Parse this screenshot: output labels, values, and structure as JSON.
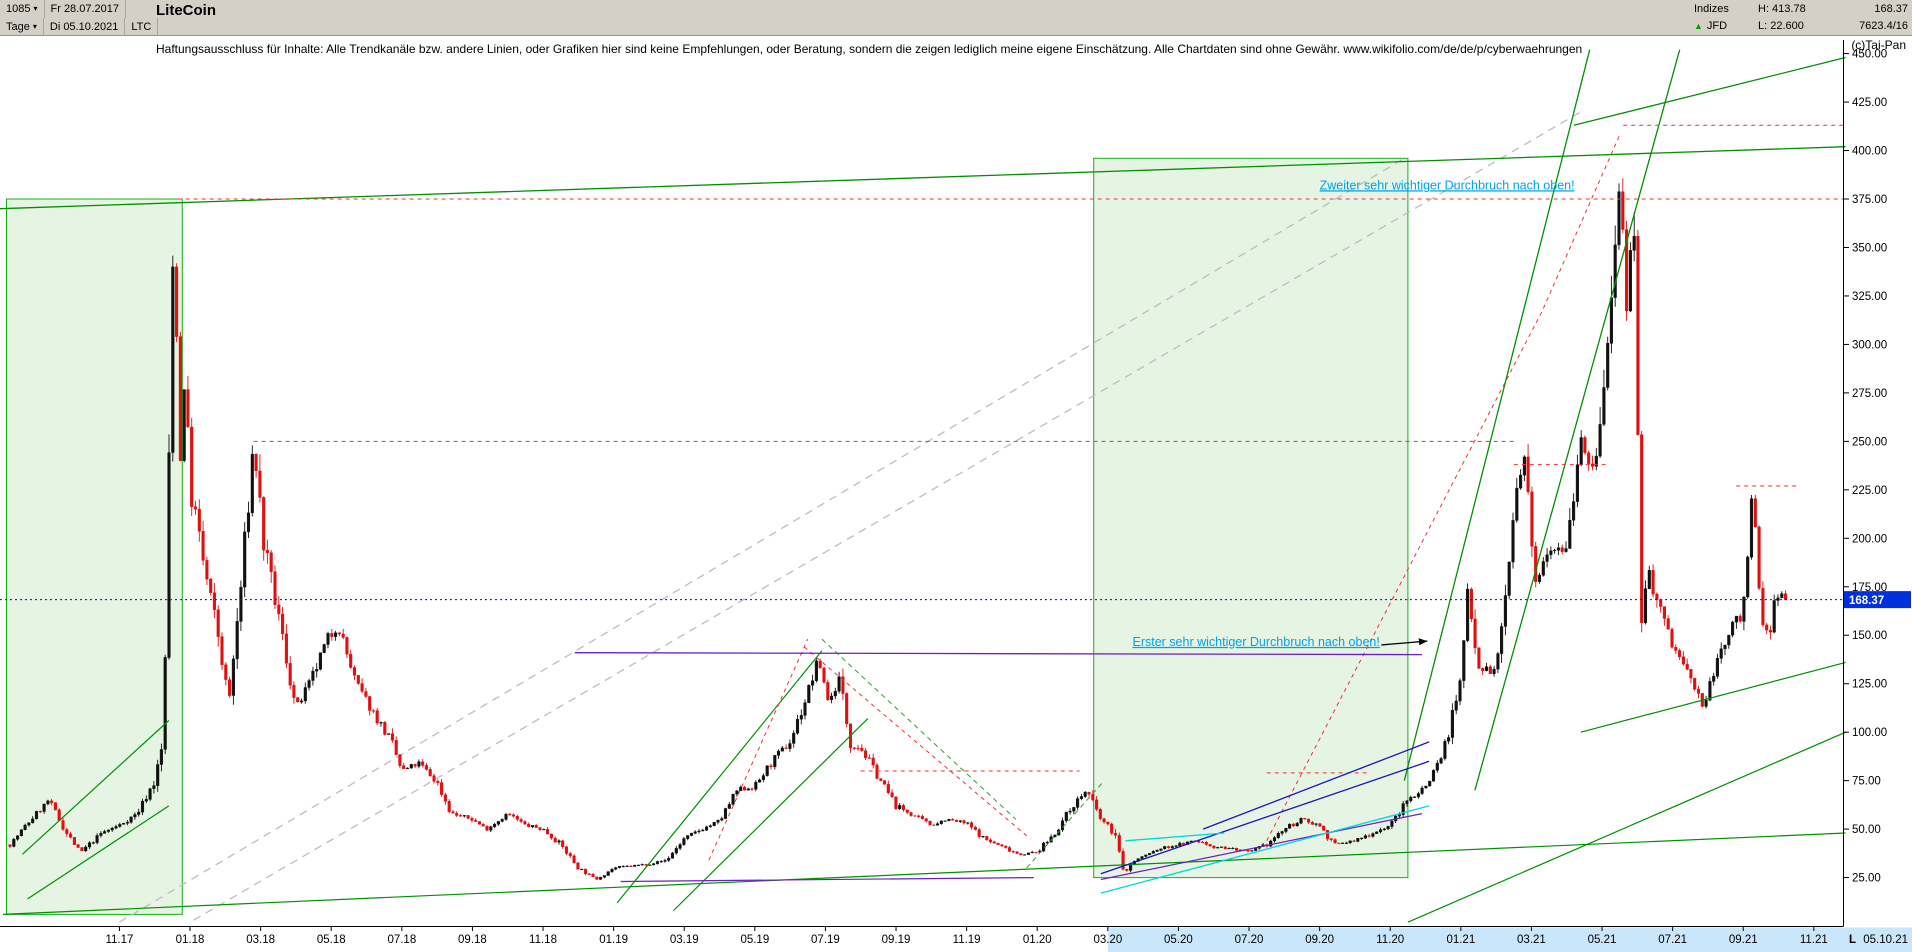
{
  "header": {
    "bars_count": "1085",
    "start_date": "Fr 28.07.2017",
    "period": "Tage",
    "end_date": "Di 05.10.2021",
    "symbol": "LTC",
    "title": "LiteCoin",
    "caret": "▾",
    "indicator": "▲",
    "copyright": "(c)Tai-Pan",
    "right": {
      "indices": "Indizes",
      "high": "H: 413.78",
      "last": "168.37",
      "source": "JFD",
      "low": "L: 22.600",
      "volume": "7623.4/16"
    }
  },
  "disclaimer": "Haftungsausschluss für Inhalte: Alle Trendkanäle bzw. andere Linien, oder Grafiken hier sind keine Empfehlungen, oder Beratung, sondern die zeigen lediglich meine eigene Einschätzung. Alle Chartdaten sind ohne Gewähr.  www.wikifolio.com/de/de/p/cyberwaehrungen",
  "chart_data": {
    "type": "candlestick",
    "title": "LiteCoin",
    "symbol": "LTC",
    "timeframe": "Tage",
    "date_range": [
      "28.07.2017",
      "05.10.2021"
    ],
    "months_total": 50.3,
    "last_price": 168.37,
    "high": 413.78,
    "low": 22.6,
    "ylim": [
      0,
      455
    ],
    "up_color": "#111111",
    "down_color": "#e01010",
    "annotation_color": "#00a2e8",
    "y_ticks": [
      "450.00",
      "425.00",
      "400.00",
      "375.00",
      "350.00",
      "325.00",
      "300.00",
      "275.00",
      "250.00",
      "225.00",
      "200.00",
      "175.00",
      "150.00",
      "125.00",
      "100.00",
      "75.00",
      "50.00",
      "25.00"
    ],
    "x_ticks": [
      {
        "m": 3.1,
        "label": "11.17"
      },
      {
        "m": 5.1,
        "label": "01.18"
      },
      {
        "m": 7.1,
        "label": "03.18"
      },
      {
        "m": 9.1,
        "label": "05.18"
      },
      {
        "m": 11.1,
        "label": "07.18"
      },
      {
        "m": 13.1,
        "label": "09.18"
      },
      {
        "m": 15.1,
        "label": "11.18"
      },
      {
        "m": 17.1,
        "label": "01.19"
      },
      {
        "m": 19.1,
        "label": "03.19"
      },
      {
        "m": 21.1,
        "label": "05.19"
      },
      {
        "m": 23.1,
        "label": "07.19"
      },
      {
        "m": 25.1,
        "label": "09.19"
      },
      {
        "m": 27.1,
        "label": "11.19"
      },
      {
        "m": 29.1,
        "label": "01.20"
      },
      {
        "m": 31.1,
        "label": "03.20"
      },
      {
        "m": 33.1,
        "label": "05.20"
      },
      {
        "m": 35.1,
        "label": "07.20"
      },
      {
        "m": 37.1,
        "label": "09.20"
      },
      {
        "m": 39.1,
        "label": "11.20"
      },
      {
        "m": 41.1,
        "label": "01.21"
      },
      {
        "m": 43.1,
        "label": "03.21"
      },
      {
        "m": 45.1,
        "label": "05.21"
      },
      {
        "m": 47.1,
        "label": "07.21"
      },
      {
        "m": 49.1,
        "label": "09.21"
      },
      {
        "m": 51.1,
        "label": "11.21"
      }
    ],
    "x_highlight_from": 31.1,
    "last_marker": {
      "l": "L",
      "date": "05.10.21"
    },
    "price_anchors": [
      [
        0,
        42
      ],
      [
        0.6,
        55
      ],
      [
        1.1,
        65
      ],
      [
        1.6,
        48
      ],
      [
        2.0,
        38
      ],
      [
        2.6,
        48
      ],
      [
        3.1,
        52
      ],
      [
        3.6,
        58
      ],
      [
        4.1,
        75
      ],
      [
        4.35,
        95
      ],
      [
        4.55,
        280
      ],
      [
        4.65,
        375
      ],
      [
        4.8,
        230
      ],
      [
        4.95,
        290
      ],
      [
        5.1,
        228
      ],
      [
        5.5,
        185
      ],
      [
        5.9,
        150
      ],
      [
        6.2,
        115
      ],
      [
        6.6,
        185
      ],
      [
        6.9,
        250
      ],
      [
        7.2,
        195
      ],
      [
        7.6,
        160
      ],
      [
        8.1,
        112
      ],
      [
        8.5,
        125
      ],
      [
        9.0,
        148
      ],
      [
        9.3,
        155
      ],
      [
        9.8,
        125
      ],
      [
        10.3,
        110
      ],
      [
        10.8,
        95
      ],
      [
        11.1,
        80
      ],
      [
        11.6,
        84
      ],
      [
        12.1,
        74
      ],
      [
        12.5,
        58
      ],
      [
        13.1,
        55
      ],
      [
        13.5,
        50
      ],
      [
        14.1,
        58
      ],
      [
        14.6,
        52
      ],
      [
        15.1,
        50
      ],
      [
        15.6,
        42
      ],
      [
        16.1,
        30
      ],
      [
        16.6,
        24
      ],
      [
        17.1,
        30
      ],
      [
        17.6,
        31
      ],
      [
        18.1,
        32
      ],
      [
        18.6,
        34
      ],
      [
        19.1,
        45
      ],
      [
        19.6,
        50
      ],
      [
        20.1,
        54
      ],
      [
        20.6,
        70
      ],
      [
        21.1,
        72
      ],
      [
        21.6,
        85
      ],
      [
        22.1,
        95
      ],
      [
        22.6,
        120
      ],
      [
        22.9,
        138
      ],
      [
        23.2,
        115
      ],
      [
        23.5,
        128
      ],
      [
        23.8,
        95
      ],
      [
        24.1,
        92
      ],
      [
        24.5,
        80
      ],
      [
        25.1,
        62
      ],
      [
        25.5,
        58
      ],
      [
        26.1,
        52
      ],
      [
        26.5,
        55
      ],
      [
        27.1,
        53
      ],
      [
        27.6,
        45
      ],
      [
        28.1,
        41
      ],
      [
        28.6,
        37
      ],
      [
        29.1,
        38
      ],
      [
        29.6,
        48
      ],
      [
        30.1,
        62
      ],
      [
        30.5,
        70
      ],
      [
        30.9,
        55
      ],
      [
        31.3,
        48
      ],
      [
        31.55,
        27
      ],
      [
        31.8,
        33
      ],
      [
        32.1,
        36
      ],
      [
        32.6,
        40
      ],
      [
        33.1,
        42
      ],
      [
        33.6,
        44
      ],
      [
        34.1,
        41
      ],
      [
        34.6,
        40
      ],
      [
        35.1,
        38
      ],
      [
        35.6,
        42
      ],
      [
        36.1,
        50
      ],
      [
        36.6,
        55
      ],
      [
        37.1,
        52
      ],
      [
        37.5,
        42
      ],
      [
        38.1,
        44
      ],
      [
        38.6,
        48
      ],
      [
        39.1,
        52
      ],
      [
        39.6,
        65
      ],
      [
        40.1,
        72
      ],
      [
        40.6,
        90
      ],
      [
        41.1,
        125
      ],
      [
        41.3,
        175
      ],
      [
        41.6,
        135
      ],
      [
        42.1,
        130
      ],
      [
        42.7,
        225
      ],
      [
        42.9,
        240
      ],
      [
        43.2,
        175
      ],
      [
        43.5,
        195
      ],
      [
        44.1,
        197
      ],
      [
        44.5,
        255
      ],
      [
        44.8,
        230
      ],
      [
        45.1,
        265
      ],
      [
        45.45,
        340
      ],
      [
        45.6,
        390
      ],
      [
        45.8,
        310
      ],
      [
        46.0,
        360
      ],
      [
        46.2,
        160
      ],
      [
        46.4,
        185
      ],
      [
        46.6,
        170
      ],
      [
        47.1,
        145
      ],
      [
        47.6,
        128
      ],
      [
        48.0,
        112
      ],
      [
        48.4,
        140
      ],
      [
        49.1,
        165
      ],
      [
        49.35,
        225
      ],
      [
        49.6,
        155
      ],
      [
        49.9,
        150
      ],
      [
        50.0,
        175
      ],
      [
        50.3,
        168.37
      ]
    ],
    "regions": [
      {
        "m": [
          -0.1,
          4.88
        ],
        "p": [
          6,
          375
        ],
        "fill": "#e6f4e3",
        "stroke": "#18b018"
      },
      {
        "m": [
          30.7,
          39.6
        ],
        "p": [
          25,
          396
        ],
        "fill": "#e6f4e3",
        "stroke": "#18b018"
      }
    ],
    "overlays_behind": [
      {
        "color": "#bdbdbd",
        "width": 1.3,
        "dash": "8 6",
        "pts": [
          [
            5.2,
            3
          ],
          [
            44.5,
            420
          ]
        ]
      },
      {
        "color": "#bdbdbd",
        "width": 1.3,
        "dash": "8 6",
        "pts": [
          [
            3.1,
            2
          ],
          [
            39.5,
            396
          ]
        ]
      }
    ],
    "overlays": [
      {
        "color": "#009000",
        "width": 1.3,
        "pts": [
          [
            -0.3,
            370
          ],
          [
            52,
            402
          ]
        ]
      },
      {
        "color": "#009000",
        "width": 1.3,
        "pts": [
          [
            39.5,
            75
          ],
          [
            44.75,
            452
          ]
        ]
      },
      {
        "color": "#009000",
        "width": 1.3,
        "pts": [
          [
            41.5,
            70
          ],
          [
            47.3,
            452
          ]
        ]
      },
      {
        "color": "#009000",
        "width": 1.3,
        "pts": [
          [
            44.3,
            413
          ],
          [
            52,
            448
          ]
        ]
      },
      {
        "color": "#009000",
        "width": 1.2,
        "pts": [
          [
            17.2,
            12
          ],
          [
            23.0,
            142
          ]
        ]
      },
      {
        "color": "#009000",
        "width": 1.2,
        "pts": [
          [
            18.8,
            8
          ],
          [
            24.3,
            107
          ]
        ]
      },
      {
        "color": "#009000",
        "width": 1.2,
        "pts": [
          [
            0.35,
            37
          ],
          [
            4.5,
            106
          ]
        ]
      },
      {
        "color": "#009000",
        "width": 1.2,
        "pts": [
          [
            0.5,
            14
          ],
          [
            4.5,
            62
          ]
        ]
      },
      {
        "color": "#009000",
        "width": 1.2,
        "pts": [
          [
            -0.2,
            6
          ],
          [
            52,
            48
          ]
        ]
      },
      {
        "color": "#009000",
        "width": 1.2,
        "pts": [
          [
            39.6,
            2
          ],
          [
            52,
            100
          ]
        ]
      },
      {
        "color": "#009000",
        "width": 1.2,
        "pts": [
          [
            44.5,
            100
          ],
          [
            52,
            136
          ]
        ]
      },
      {
        "color": "#30a030",
        "width": 1,
        "dash": "5 4",
        "pts": [
          [
            23.0,
            148
          ],
          [
            28.5,
            55
          ]
        ]
      },
      {
        "color": "#30a030",
        "width": 1,
        "dash": "5 4",
        "pts": [
          [
            28.8,
            30
          ],
          [
            31.0,
            75
          ]
        ]
      },
      {
        "color": "#f03030",
        "width": 1,
        "dash": "4 4",
        "pts": [
          [
            4.75,
            375
          ],
          [
            52,
            375
          ]
        ]
      },
      {
        "color": "#f03030",
        "width": 1,
        "dash": "4 4",
        "pts": [
          [
            45.7,
            413
          ],
          [
            52,
            413
          ]
        ]
      },
      {
        "color": "#f03030",
        "width": 1,
        "dash": "4 4",
        "pts": [
          [
            6.9,
            250
          ],
          [
            42.6,
            250
          ]
        ]
      },
      {
        "color": "#f03030",
        "width": 1,
        "dash": "4 4",
        "pts": [
          [
            42.6,
            238
          ],
          [
            45.2,
            238
          ]
        ]
      },
      {
        "color": "#f03030",
        "width": 1,
        "dash": "4 4",
        "pts": [
          [
            48.9,
            227
          ],
          [
            50.6,
            227
          ]
        ]
      },
      {
        "color": "#f03030",
        "width": 1,
        "dash": "4 4",
        "pts": [
          [
            24.1,
            80
          ],
          [
            30.3,
            80
          ]
        ]
      },
      {
        "color": "#f03030",
        "width": 1,
        "dash": "4 4",
        "pts": [
          [
            35.6,
            79
          ],
          [
            38.5,
            79
          ]
        ]
      },
      {
        "color": "#f03030",
        "width": 1,
        "dash": "4 4",
        "pts": [
          [
            22.5,
            144
          ],
          [
            28.9,
            45
          ]
        ]
      },
      {
        "color": "#f03030",
        "width": 1,
        "dash": "4 4",
        "pts": [
          [
            19.8,
            34
          ],
          [
            22.6,
            148
          ]
        ]
      },
      {
        "color": "#f03030",
        "width": 1,
        "dash": "4 4",
        "pts": [
          [
            35.6,
            44
          ],
          [
            43.4,
            317
          ],
          [
            45.6,
            408
          ]
        ]
      },
      {
        "color": "#6a1fc9",
        "width": 1.3,
        "pts": [
          [
            16.0,
            141
          ],
          [
            40.0,
            140
          ]
        ]
      },
      {
        "color": "#6a1fc9",
        "width": 1.2,
        "pts": [
          [
            17.3,
            23
          ],
          [
            29.0,
            25
          ]
        ]
      },
      {
        "color": "#6a1fc9",
        "width": 1.2,
        "pts": [
          [
            30.9,
            24
          ],
          [
            40.0,
            58
          ]
        ]
      },
      {
        "color": "#1515c8",
        "width": 1.3,
        "pts": [
          [
            30.9,
            27
          ],
          [
            40.2,
            85
          ]
        ]
      },
      {
        "color": "#1515c8",
        "width": 1.3,
        "pts": [
          [
            33.8,
            50
          ],
          [
            40.2,
            95
          ]
        ]
      },
      {
        "color": "#00d8d8",
        "width": 1.3,
        "pts": [
          [
            30.9,
            17
          ],
          [
            40.2,
            62
          ]
        ]
      },
      {
        "color": "#00d8d8",
        "width": 1.3,
        "pts": [
          [
            31.6,
            44
          ],
          [
            34.4,
            48
          ]
        ]
      }
    ],
    "annotations": [
      {
        "m": 37.1,
        "p": 380,
        "text": "Zweiter sehr wichtiger Durchbruch nach oben!"
      },
      {
        "m": 31.8,
        "p": 144.5,
        "text": "Erster sehr wichtiger Durchbruch nach oben!"
      }
    ],
    "arrow": {
      "from": [
        38.85,
        145
      ],
      "to": [
        40.15,
        147
      ]
    }
  }
}
